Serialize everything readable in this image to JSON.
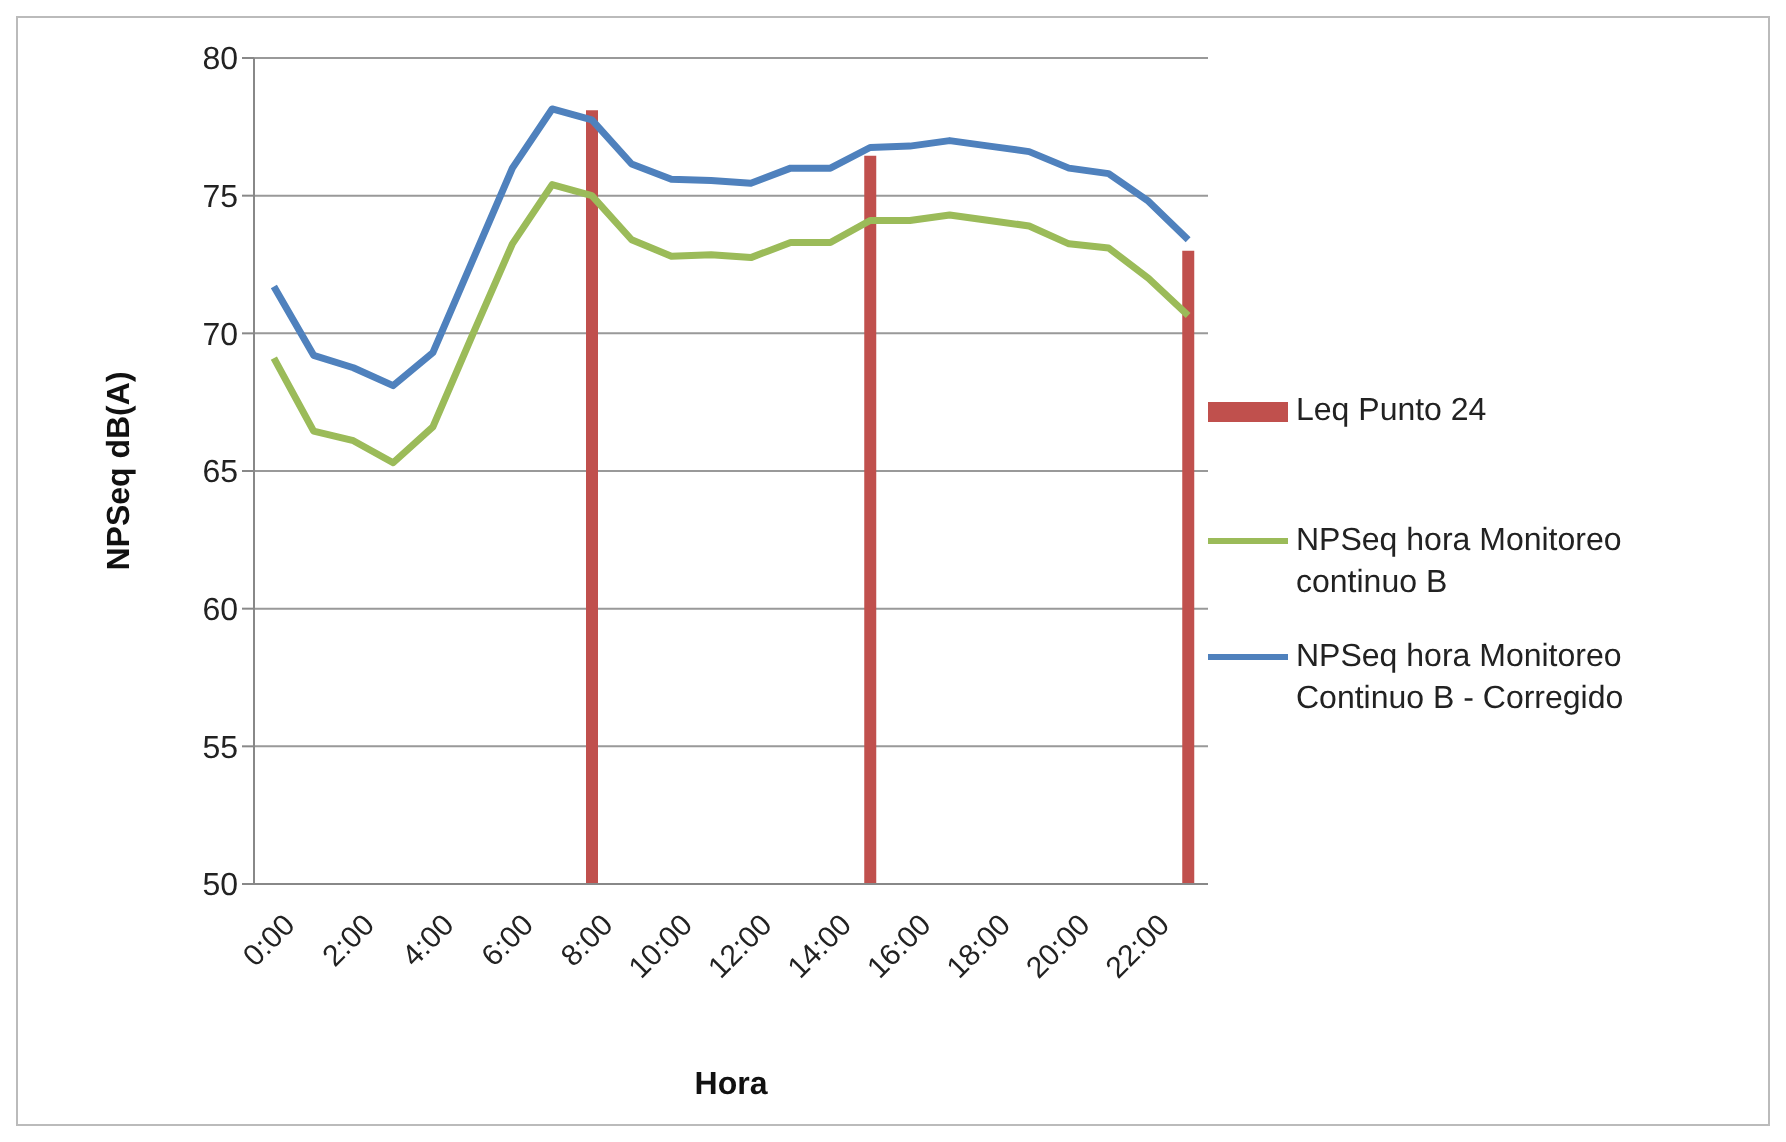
{
  "chart_data": {
    "type": "line",
    "xlabel": "Hora",
    "ylabel": "NPSeq dB(A)",
    "categories": [
      "0:00",
      null,
      "2:00",
      null,
      "4:00",
      null,
      "6:00",
      null,
      "8:00",
      null,
      "10:00",
      null,
      "12:00",
      null,
      "14:00",
      null,
      "16:00",
      null,
      "18:00",
      null,
      "20:00",
      null,
      "22:00",
      null
    ],
    "series": [
      {
        "name": "Leq Punto 24",
        "type": "bar",
        "color": "#c0504d",
        "values": [
          null,
          null,
          null,
          null,
          null,
          null,
          null,
          null,
          78.1,
          null,
          null,
          null,
          null,
          null,
          null,
          76.45,
          null,
          null,
          null,
          null,
          null,
          null,
          null,
          73.0
        ]
      },
      {
        "name": "NPSeq hora Monitoreo continuo B",
        "color": "#9bbb59",
        "values": [
          69.1,
          66.45,
          66.1,
          65.3,
          66.6,
          69.95,
          73.25,
          75.4,
          75.0,
          73.4,
          72.8,
          72.85,
          72.75,
          73.3,
          73.3,
          74.1,
          74.1,
          74.3,
          74.1,
          73.9,
          73.25,
          73.1,
          72.0,
          70.65
        ]
      },
      {
        "name": "NPSeq hora Monitoreo Continuo B - Corregido",
        "color": "#4f81bd",
        "values": [
          71.7,
          69.2,
          68.75,
          68.1,
          69.3,
          72.65,
          76.0,
          78.15,
          77.75,
          76.15,
          75.6,
          75.55,
          75.45,
          76.0,
          76.0,
          76.75,
          76.8,
          77.0,
          76.8,
          76.6,
          76.0,
          75.8,
          74.8,
          73.4
        ]
      }
    ],
    "ylim": [
      50,
      80
    ],
    "yticks": [
      50,
      55,
      60,
      65,
      70,
      75,
      80
    ],
    "grid": "y",
    "legend": "right",
    "marker": "none",
    "line_style": "solid"
  }
}
